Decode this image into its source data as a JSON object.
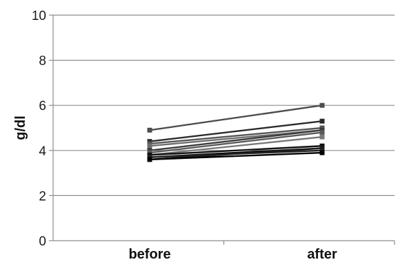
{
  "chart_data": {
    "type": "line",
    "title": "",
    "xlabel": "",
    "ylabel": "g/dl",
    "categories": [
      "before",
      "after"
    ],
    "ylim": [
      0,
      10
    ],
    "yticks": [
      "0",
      "2",
      "4",
      "6",
      "8",
      "10"
    ],
    "grid": true,
    "legend": "none",
    "series": [
      {
        "values": [
          4.9,
          6.0
        ],
        "color": "#4d4d4d"
      },
      {
        "values": [
          4.4,
          5.3
        ],
        "color": "#2a2a2a"
      },
      {
        "values": [
          4.3,
          5.0
        ],
        "color": "#555555"
      },
      {
        "values": [
          4.2,
          4.9
        ],
        "color": "#6e6e6e"
      },
      {
        "values": [
          4.0,
          4.9
        ],
        "color": "#3a3a3a"
      },
      {
        "values": [
          3.9,
          4.8
        ],
        "color": "#5a5a5a"
      },
      {
        "values": [
          3.8,
          4.6
        ],
        "color": "#7a7a7a"
      },
      {
        "values": [
          3.8,
          4.2
        ],
        "color": "#111111"
      },
      {
        "values": [
          3.7,
          4.1
        ],
        "color": "#000000"
      },
      {
        "values": [
          3.6,
          4.1
        ],
        "color": "#1a1a1a"
      },
      {
        "values": [
          3.7,
          4.0
        ],
        "color": "#222222"
      },
      {
        "values": [
          3.6,
          3.9
        ],
        "color": "#000000"
      }
    ]
  }
}
